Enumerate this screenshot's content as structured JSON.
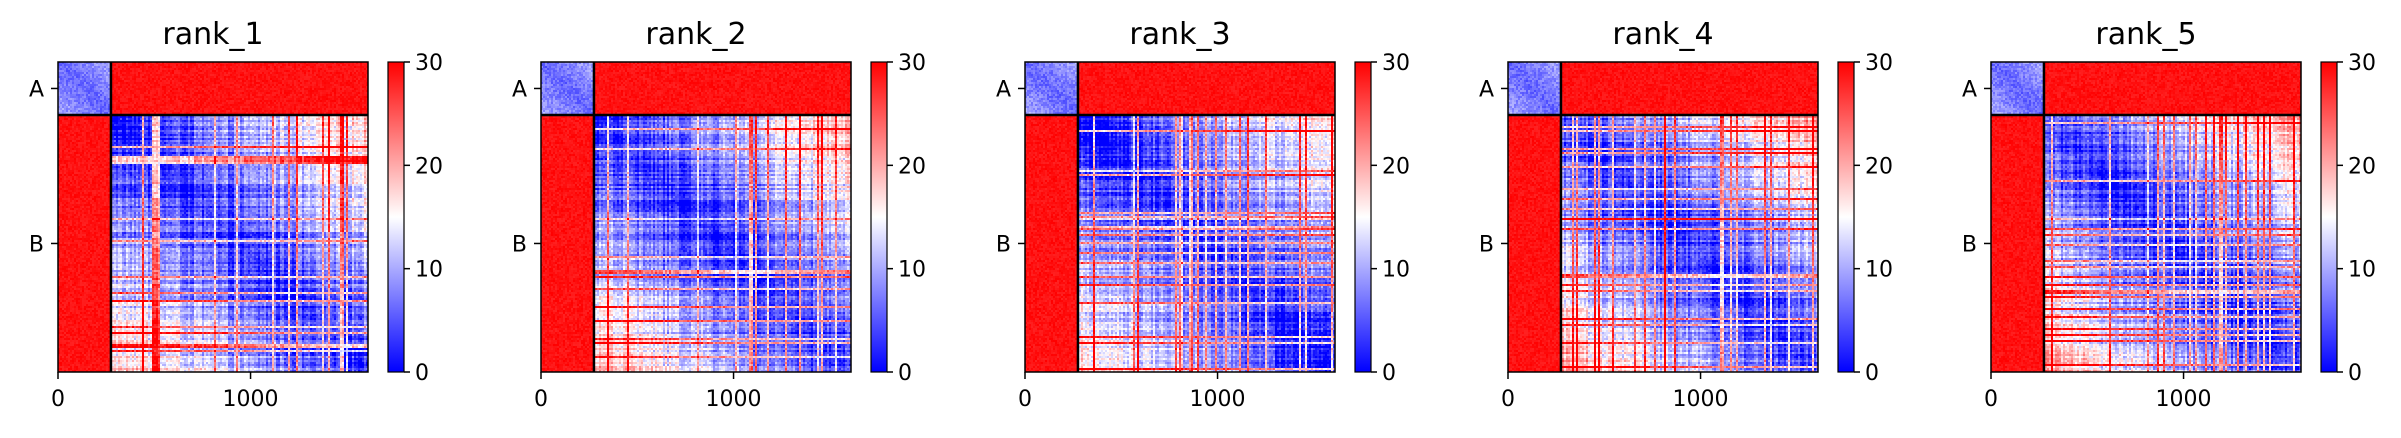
{
  "chart_data": {
    "type": "heatmap",
    "colormap": {
      "low": "#0000ff",
      "mid": "#ffffff",
      "high": "#ff0000"
    },
    "color_range": [
      0,
      30
    ],
    "colorbar_ticks": [
      "0",
      "10",
      "20",
      "30"
    ],
    "x_range": [
      0,
      1610
    ],
    "x_ticks": [
      {
        "value": 0,
        "label": "0"
      },
      {
        "value": 1000,
        "label": "1000"
      }
    ],
    "chains": [
      {
        "label": "A",
        "start": 0,
        "end": 275
      },
      {
        "label": "B",
        "start": 275,
        "end": 1610
      }
    ],
    "panels": [
      {
        "title": "rank_1"
      },
      {
        "title": "rank_2"
      },
      {
        "title": "rank_3"
      },
      {
        "title": "rank_4"
      },
      {
        "title": "rank_5"
      }
    ]
  }
}
